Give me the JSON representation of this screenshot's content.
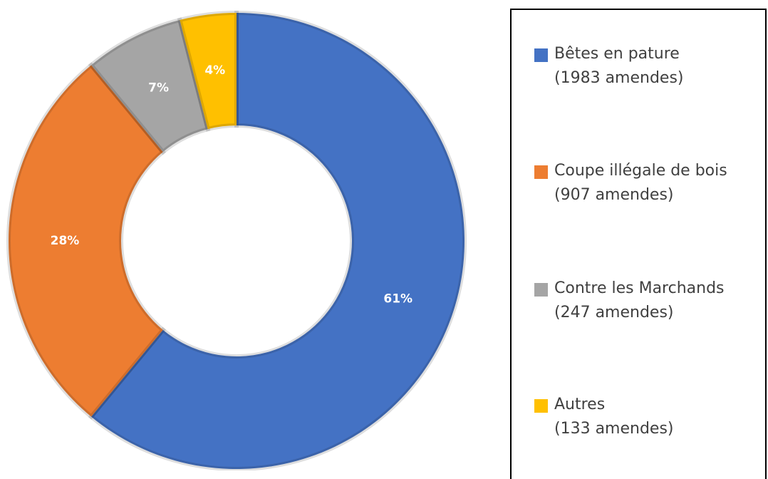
{
  "chart_data": {
    "type": "donut",
    "categories": [
      "Bêtes en pature\n(1983 amendes)",
      "Coupe illégale de bois\n(907 amendes)",
      "Contre les Marchands\n(247 amendes)",
      "Autres\n(133 amendes)"
    ],
    "values": [
      61,
      28,
      7,
      4
    ],
    "value_labels": [
      "61%",
      "28%",
      "7%",
      "4%"
    ],
    "colors": [
      "#4472c4",
      "#ed7d31",
      "#a5a5a5",
      "#ffc000"
    ],
    "legend": "right"
  }
}
